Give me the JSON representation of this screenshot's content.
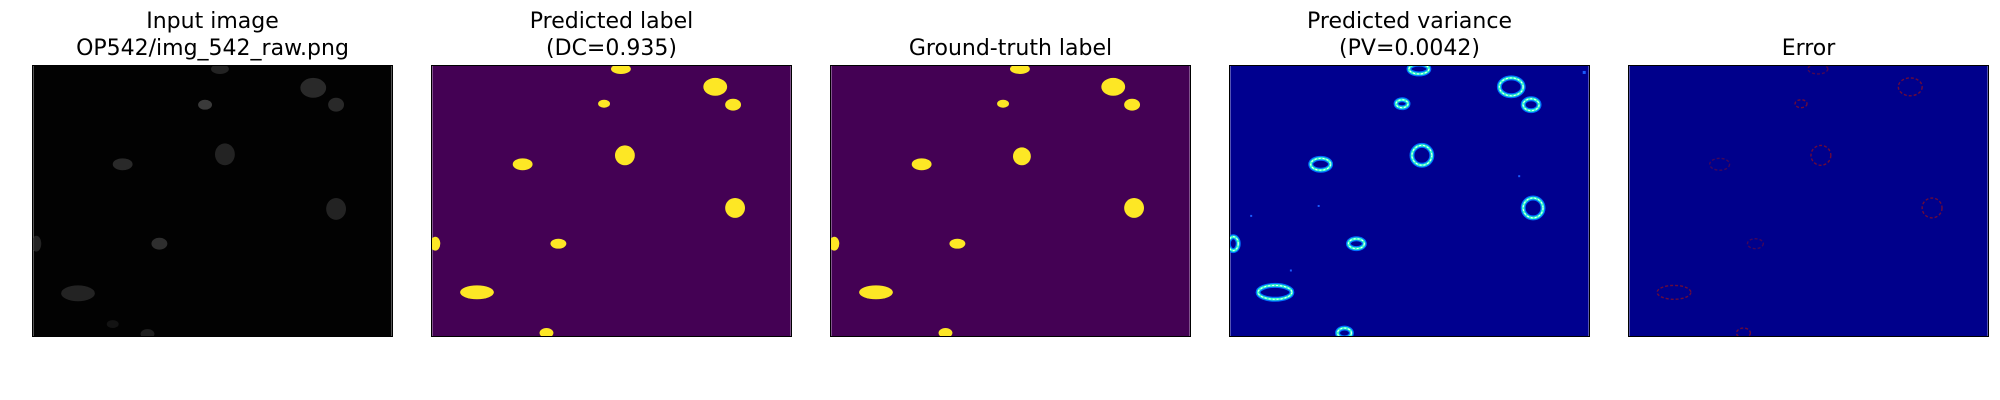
{
  "figure": {
    "panels": [
      {
        "title_line1": "Input image",
        "title_line2": "OP542/img_542_raw.png"
      },
      {
        "title_line1": "Predicted label",
        "title_line2": "(DC=0.935)"
      },
      {
        "title_line1": "",
        "title_line2": "Ground-truth label"
      },
      {
        "title_line1": "Predicted variance",
        "title_line2": "(PV=0.0042)"
      },
      {
        "title_line1": "",
        "title_line2": "Error"
      }
    ]
  },
  "colors": {
    "input_background": "#020202",
    "input_nucleus": "#3a3a3a",
    "label_background": "#440154",
    "label_foreground": "#fde725",
    "variance_background": "#00008f",
    "variance_ring_outer": "#ffffff",
    "variance_ring_mid": "#36ffc4",
    "variance_ring_inner": "#0070ff",
    "error_background": "#00008b",
    "error_ring": "#6b0a3a"
  }
}
